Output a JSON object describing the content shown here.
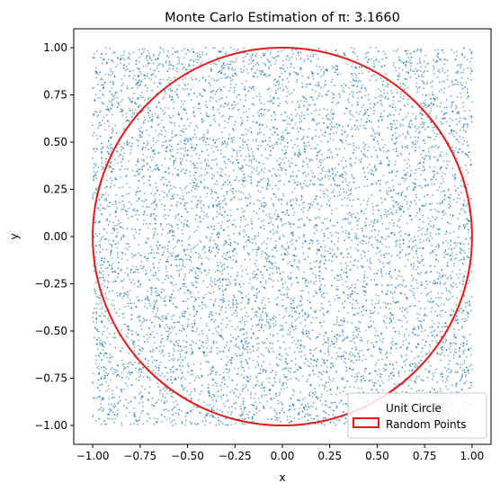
{
  "chart_data": {
    "type": "scatter",
    "title": "Monte Carlo Estimation of π: 3.1660",
    "xlabel": "x",
    "ylabel": "y",
    "xlim": [
      -1.1,
      1.1
    ],
    "ylim": [
      -1.1,
      1.1
    ],
    "grid": false,
    "x_ticks": [
      "−1.00",
      "−0.75",
      "−0.50",
      "−0.25",
      "0.00",
      "0.25",
      "0.50",
      "0.75",
      "1.00"
    ],
    "y_ticks": [
      "−1.00",
      "−0.75",
      "−0.50",
      "−0.25",
      "0.00",
      "0.25",
      "0.50",
      "0.75",
      "1.00"
    ],
    "series": [
      {
        "name": "Random Points",
        "kind": "scatter",
        "color": "#1f77b4",
        "alpha": 0.6,
        "distribution": "uniform",
        "x_range": [
          -1.0,
          1.0
        ],
        "y_range": [
          -1.0,
          1.0
        ],
        "sample_points": [
          [
            -0.87,
            0.91
          ],
          [
            0.12,
            -0.44
          ],
          [
            0.65,
            0.33
          ],
          [
            -0.31,
            -0.72
          ],
          [
            0.94,
            -0.95
          ],
          [
            -0.05,
            0.58
          ]
        ]
      },
      {
        "name": "Unit Circle",
        "kind": "circle",
        "center": [
          0,
          0
        ],
        "radius": 1.0,
        "color": "#e8191a"
      }
    ],
    "legend": {
      "position": "lower-right",
      "entries": [
        "Unit Circle",
        "Random Points"
      ]
    }
  }
}
